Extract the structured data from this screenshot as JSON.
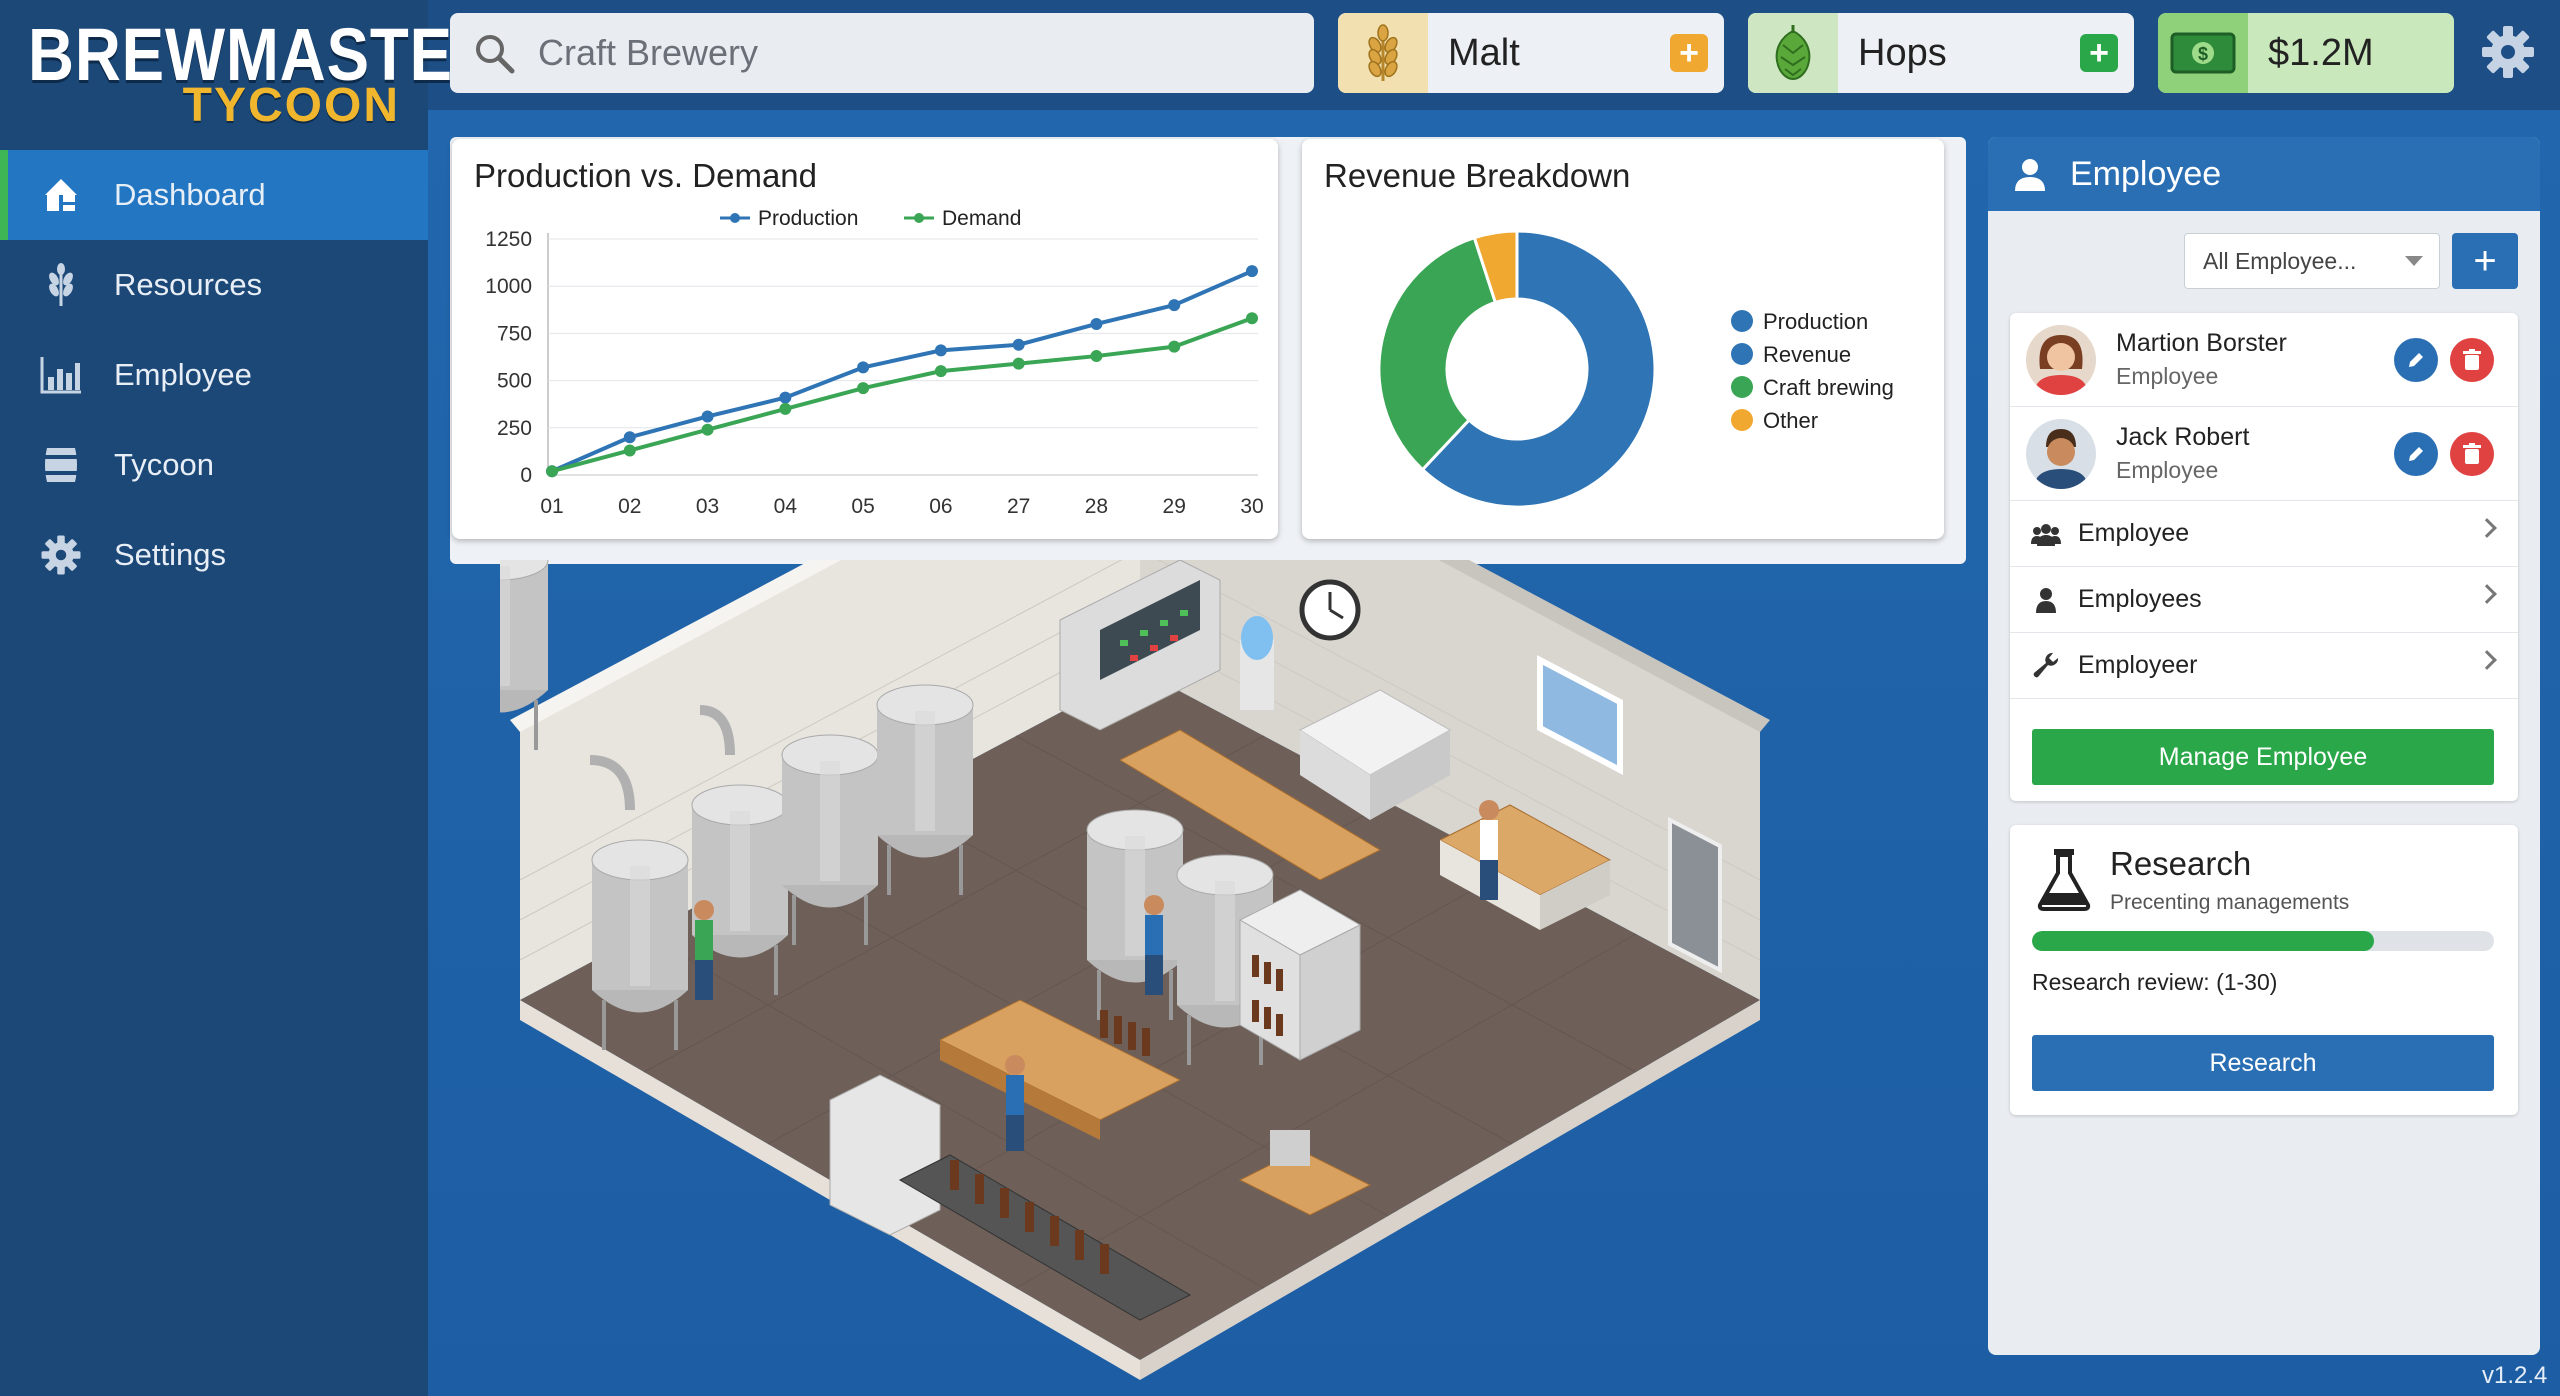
{
  "logo": {
    "line1": "BREWMASTER",
    "line2": "TYCOON"
  },
  "search": {
    "placeholder": "Craft Brewery",
    "icon": "search-icon"
  },
  "resources": [
    {
      "label": "Malt",
      "icon": "wheat-icon",
      "action_icon": "plus-icon"
    },
    {
      "label": "Hops",
      "icon": "hop-icon",
      "action_icon": "plus-icon"
    },
    {
      "label": "$1.2M",
      "icon": "cash-icon"
    }
  ],
  "top_icons": {
    "settings": "gear-icon"
  },
  "sidebar": {
    "items": [
      {
        "label": "Dashboard",
        "icon": "dashboard-icon",
        "active": true
      },
      {
        "label": "Resources",
        "icon": "wheat-icon",
        "active": false
      },
      {
        "label": "Employee",
        "icon": "bar-chart-icon",
        "active": false
      },
      {
        "label": "Tycoon",
        "icon": "barrel-icon",
        "active": false
      },
      {
        "label": "Settings",
        "icon": "gear-icon",
        "active": false
      }
    ]
  },
  "colors": {
    "accent_blue": "#2f75b5",
    "green": "#2aa849",
    "orange": "#f0a830",
    "red": "#e04141",
    "sidebar": "#1c4878"
  },
  "chart_data": [
    {
      "type": "line",
      "title": "Production vs. Demand",
      "categories": [
        "01",
        "02",
        "03",
        "04",
        "05",
        "06",
        "27",
        "28",
        "29",
        "30"
      ],
      "series": [
        {
          "name": "Production",
          "color": "#2f75b5",
          "values": [
            20,
            200,
            310,
            410,
            570,
            660,
            690,
            800,
            900,
            1080
          ]
        },
        {
          "name": "Demand",
          "color": "#3aa655",
          "values": [
            20,
            130,
            240,
            350,
            460,
            550,
            590,
            630,
            680,
            830
          ]
        }
      ],
      "yticks": [
        0,
        250,
        500,
        750,
        1000,
        1250
      ],
      "ylim": [
        0,
        1250
      ],
      "legend": "top-center",
      "grid": "horizontal"
    },
    {
      "type": "pie",
      "title": "Revenue Breakdown",
      "donut": true,
      "slices": [
        {
          "name": "Production",
          "color": "#2f75b5",
          "value": 0
        },
        {
          "name": "Revenue",
          "color": "#2f75b5",
          "value": 62
        },
        {
          "name": "Craft brewing",
          "color": "#3aa655",
          "value": 33
        },
        {
          "name": "Other",
          "color": "#f0a830",
          "value": 5
        }
      ],
      "legend": "right"
    }
  ],
  "employee_panel": {
    "title": "Employee",
    "filter_value": "All Employee...",
    "add_label": "+",
    "employees": [
      {
        "name": "Martion Borster",
        "role": "Employee",
        "avatar": "female-avatar"
      },
      {
        "name": "Jack Robert",
        "role": "Employee",
        "avatar": "male-avatar"
      }
    ],
    "links": [
      {
        "label": "Employee",
        "icon": "group-icon"
      },
      {
        "label": "Employees",
        "icon": "person-icon"
      },
      {
        "label": "Employeer",
        "icon": "wrench-icon"
      }
    ],
    "manage_label": "Manage Employee"
  },
  "research": {
    "title": "Research",
    "subtitle": "Precenting managements",
    "progress": 0.74,
    "review": "Research review: (1-30)",
    "button": "Research",
    "icon": "flask-icon"
  },
  "version": "v1.2.4"
}
